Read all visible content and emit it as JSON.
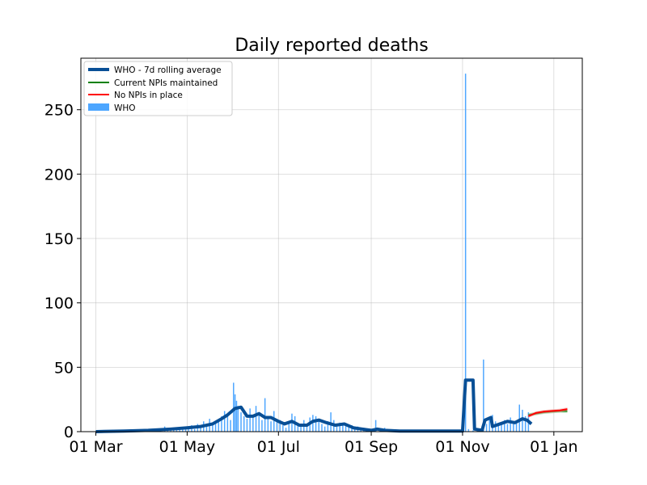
{
  "chart_data": {
    "type": "bar",
    "title": "Daily reported deaths",
    "xlabel": "",
    "ylabel": "",
    "x_tick_labels": [
      "01 Mar",
      "01 May",
      "01 Jul",
      "01 Sep",
      "01 Nov",
      "01 Jan"
    ],
    "x_tick_dates": [
      "2020-03-01",
      "2020-05-01",
      "2020-07-01",
      "2020-09-01",
      "2020-11-01",
      "2021-01-01"
    ],
    "xlim": [
      "2020-02-20",
      "2021-01-20"
    ],
    "y_ticks": [
      0,
      50,
      100,
      150,
      200,
      250
    ],
    "y_tick_labels": [
      "0",
      "50",
      "100",
      "150",
      "200",
      "250"
    ],
    "ylim": [
      0,
      290
    ],
    "grid": true,
    "legend_position": "top-left",
    "legend": [
      {
        "label": "WHO - 7d rolling average",
        "type": "line",
        "color": "#084f96"
      },
      {
        "label": "Current NPIs maintained",
        "type": "line",
        "color": "#008000"
      },
      {
        "label": "No NPIs in place",
        "type": "line",
        "color": "#ff0000"
      },
      {
        "label": "WHO",
        "type": "bar",
        "color": "#4da6ff"
      }
    ],
    "series": [
      {
        "name": "WHO",
        "type": "bar",
        "color": "#4da6ff",
        "points": [
          [
            "2020-04-10",
            1
          ],
          [
            "2020-04-13",
            2
          ],
          [
            "2020-04-16",
            4
          ],
          [
            "2020-04-18",
            2
          ],
          [
            "2020-04-20",
            3
          ],
          [
            "2020-04-22",
            1
          ],
          [
            "2020-04-24",
            2
          ],
          [
            "2020-04-26",
            3
          ],
          [
            "2020-04-28",
            2
          ],
          [
            "2020-04-30",
            4
          ],
          [
            "2020-05-02",
            3
          ],
          [
            "2020-05-04",
            5
          ],
          [
            "2020-05-06",
            2
          ],
          [
            "2020-05-08",
            6
          ],
          [
            "2020-05-10",
            3
          ],
          [
            "2020-05-12",
            8
          ],
          [
            "2020-05-14",
            4
          ],
          [
            "2020-05-16",
            10
          ],
          [
            "2020-05-18",
            5
          ],
          [
            "2020-05-20",
            7
          ],
          [
            "2020-05-22",
            9
          ],
          [
            "2020-05-24",
            12
          ],
          [
            "2020-05-26",
            16
          ],
          [
            "2020-05-28",
            13
          ],
          [
            "2020-05-30",
            9
          ],
          [
            "2020-06-01",
            38
          ],
          [
            "2020-06-02",
            29
          ],
          [
            "2020-06-03",
            24
          ],
          [
            "2020-06-04",
            20
          ],
          [
            "2020-06-06",
            15
          ],
          [
            "2020-06-08",
            12
          ],
          [
            "2020-06-10",
            10
          ],
          [
            "2020-06-12",
            18
          ],
          [
            "2020-06-14",
            11
          ],
          [
            "2020-06-16",
            20
          ],
          [
            "2020-06-18",
            13
          ],
          [
            "2020-06-20",
            9
          ],
          [
            "2020-06-22",
            26
          ],
          [
            "2020-06-24",
            12
          ],
          [
            "2020-06-26",
            8
          ],
          [
            "2020-06-28",
            16
          ],
          [
            "2020-06-30",
            10
          ],
          [
            "2020-07-02",
            9
          ],
          [
            "2020-07-04",
            5
          ],
          [
            "2020-07-06",
            3
          ],
          [
            "2020-07-08",
            8
          ],
          [
            "2020-07-10",
            14
          ],
          [
            "2020-07-12",
            12
          ],
          [
            "2020-07-14",
            6
          ],
          [
            "2020-07-16",
            4
          ],
          [
            "2020-07-18",
            9
          ],
          [
            "2020-07-20",
            5
          ],
          [
            "2020-07-22",
            11
          ],
          [
            "2020-07-24",
            13
          ],
          [
            "2020-07-26",
            12
          ],
          [
            "2020-07-28",
            10
          ],
          [
            "2020-07-30",
            6
          ],
          [
            "2020-08-01",
            4
          ],
          [
            "2020-08-03",
            8
          ],
          [
            "2020-08-05",
            15
          ],
          [
            "2020-08-07",
            9
          ],
          [
            "2020-08-09",
            6
          ],
          [
            "2020-08-11",
            7
          ],
          [
            "2020-08-13",
            5
          ],
          [
            "2020-08-15",
            6
          ],
          [
            "2020-08-17",
            4
          ],
          [
            "2020-08-19",
            5
          ],
          [
            "2020-08-21",
            3
          ],
          [
            "2020-08-23",
            4
          ],
          [
            "2020-08-25",
            2
          ],
          [
            "2020-08-27",
            3
          ],
          [
            "2020-08-29",
            2
          ],
          [
            "2020-09-02",
            1
          ],
          [
            "2020-09-04",
            9
          ],
          [
            "2020-09-07",
            2
          ],
          [
            "2020-09-10",
            3
          ],
          [
            "2020-09-14",
            1
          ],
          [
            "2020-10-20",
            1
          ],
          [
            "2020-11-01",
            2
          ],
          [
            "2020-11-03",
            278
          ],
          [
            "2020-11-05",
            2
          ],
          [
            "2020-11-08",
            1
          ],
          [
            "2020-11-12",
            2
          ],
          [
            "2020-11-15",
            56
          ],
          [
            "2020-11-17",
            6
          ],
          [
            "2020-11-19",
            10
          ],
          [
            "2020-11-21",
            13
          ],
          [
            "2020-11-23",
            8
          ],
          [
            "2020-11-25",
            5
          ],
          [
            "2020-11-27",
            7
          ],
          [
            "2020-11-29",
            9
          ],
          [
            "2020-12-01",
            6
          ],
          [
            "2020-12-03",
            11
          ],
          [
            "2020-12-05",
            8
          ],
          [
            "2020-12-07",
            7
          ],
          [
            "2020-12-09",
            21
          ],
          [
            "2020-12-11",
            17
          ],
          [
            "2020-12-13",
            12
          ],
          [
            "2020-12-15",
            15
          ]
        ]
      },
      {
        "name": "WHO - 7d rolling average",
        "type": "line",
        "color": "#084f96",
        "points": [
          [
            "2020-03-01",
            0
          ],
          [
            "2020-03-20",
            0.5
          ],
          [
            "2020-04-05",
            1
          ],
          [
            "2020-04-20",
            2
          ],
          [
            "2020-05-01",
            3
          ],
          [
            "2020-05-10",
            4
          ],
          [
            "2020-05-18",
            6
          ],
          [
            "2020-05-24",
            10
          ],
          [
            "2020-05-28",
            13
          ],
          [
            "2020-06-02",
            18
          ],
          [
            "2020-06-06",
            19
          ],
          [
            "2020-06-10",
            12
          ],
          [
            "2020-06-14",
            12
          ],
          [
            "2020-06-18",
            14
          ],
          [
            "2020-06-22",
            11
          ],
          [
            "2020-06-26",
            11
          ],
          [
            "2020-07-01",
            8
          ],
          [
            "2020-07-05",
            6
          ],
          [
            "2020-07-10",
            8
          ],
          [
            "2020-07-15",
            5
          ],
          [
            "2020-07-20",
            5
          ],
          [
            "2020-07-24",
            8
          ],
          [
            "2020-07-28",
            9
          ],
          [
            "2020-08-02",
            7
          ],
          [
            "2020-08-08",
            5
          ],
          [
            "2020-08-14",
            6
          ],
          [
            "2020-08-20",
            3
          ],
          [
            "2020-08-26",
            2
          ],
          [
            "2020-09-01",
            1
          ],
          [
            "2020-09-05",
            2
          ],
          [
            "2020-09-10",
            1
          ],
          [
            "2020-09-20",
            0.5
          ],
          [
            "2020-10-20",
            0.5
          ],
          [
            "2020-11-01",
            0.5
          ],
          [
            "2020-11-03",
            40
          ],
          [
            "2020-11-08",
            40
          ],
          [
            "2020-11-09",
            2
          ],
          [
            "2020-11-14",
            1
          ],
          [
            "2020-11-16",
            9
          ],
          [
            "2020-11-20",
            11
          ],
          [
            "2020-11-21",
            4
          ],
          [
            "2020-11-26",
            6
          ],
          [
            "2020-12-01",
            8
          ],
          [
            "2020-12-06",
            7
          ],
          [
            "2020-12-11",
            10
          ],
          [
            "2020-12-14",
            9
          ],
          [
            "2020-12-17",
            6
          ]
        ]
      },
      {
        "name": "Current NPIs maintained",
        "type": "line",
        "color": "#008000",
        "points": [
          [
            "2020-12-15",
            13
          ],
          [
            "2020-12-20",
            14
          ],
          [
            "2020-12-25",
            15
          ],
          [
            "2020-12-30",
            15.5
          ],
          [
            "2021-01-05",
            16
          ],
          [
            "2021-01-10",
            16
          ]
        ]
      },
      {
        "name": "No NPIs in place",
        "type": "line",
        "color": "#ff0000",
        "points": [
          [
            "2020-12-15",
            12
          ],
          [
            "2020-12-20",
            14.5
          ],
          [
            "2020-12-25",
            15.5
          ],
          [
            "2020-12-30",
            16
          ],
          [
            "2021-01-05",
            16.5
          ],
          [
            "2021-01-10",
            17.5
          ]
        ]
      }
    ]
  }
}
